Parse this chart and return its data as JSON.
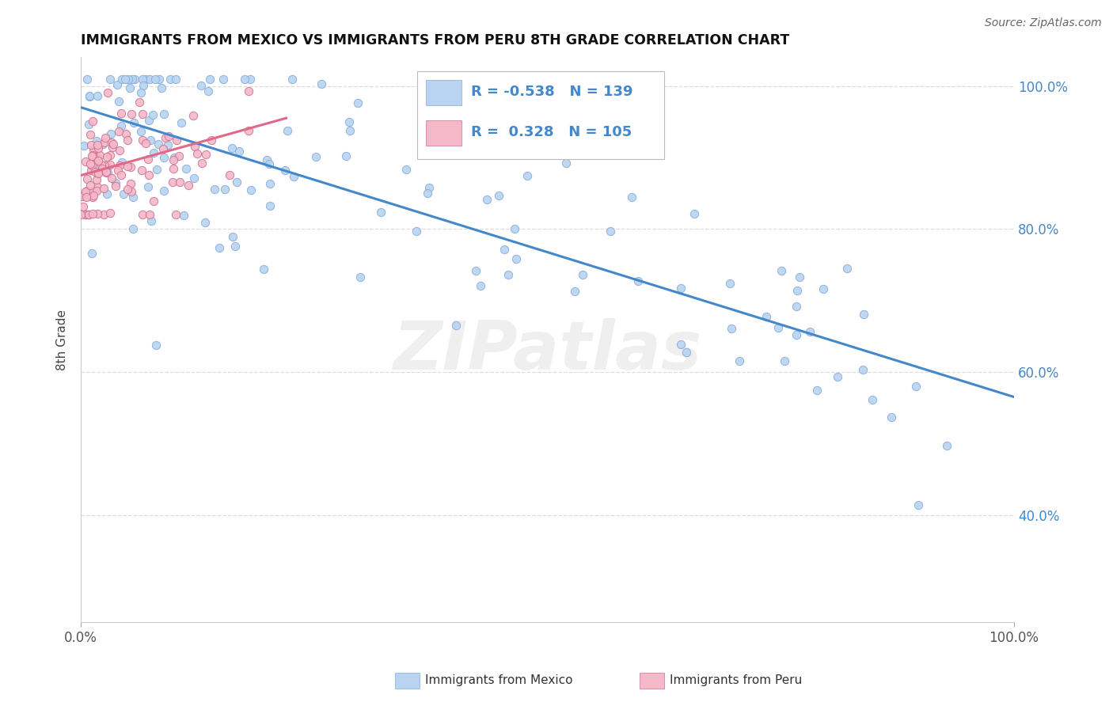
{
  "title": "IMMIGRANTS FROM MEXICO VS IMMIGRANTS FROM PERU 8TH GRADE CORRELATION CHART",
  "source": "Source: ZipAtlas.com",
  "ylabel": "8th Grade",
  "xmin": 0.0,
  "xmax": 1.0,
  "ymin": 0.25,
  "ymax": 1.04,
  "xtick_positions": [
    0.0,
    1.0
  ],
  "xtick_labels": [
    "0.0%",
    "100.0%"
  ],
  "ytick_values": [
    0.4,
    0.6,
    0.8,
    1.0
  ],
  "ytick_labels": [
    "40.0%",
    "60.0%",
    "80.0%",
    "100.0%"
  ],
  "legend_blue_r": "-0.538",
  "legend_blue_n": "139",
  "legend_pink_r": "0.328",
  "legend_pink_n": "105",
  "blue_color": "#b8d4f0",
  "blue_line_color": "#4488cc",
  "pink_color": "#f5b8c8",
  "pink_line_color": "#e06888",
  "blue_edge_color": "#88aadd",
  "pink_edge_color": "#cc7090",
  "marker_size": 55,
  "blue_line_x0": 0.0,
  "blue_line_y0": 0.97,
  "blue_line_x1": 1.0,
  "blue_line_y1": 0.565,
  "pink_line_x0": 0.0,
  "pink_line_y0": 0.875,
  "pink_line_x1": 0.22,
  "pink_line_y1": 0.955,
  "background_color": "#ffffff",
  "title_color": "#111111",
  "source_color": "#666666",
  "grid_color": "#dddddd",
  "legend_text_color": "#4488cc",
  "watermark_text": "ZIPatlas",
  "bottom_legend_blue": "Immigrants from Mexico",
  "bottom_legend_pink": "Immigrants from Peru"
}
